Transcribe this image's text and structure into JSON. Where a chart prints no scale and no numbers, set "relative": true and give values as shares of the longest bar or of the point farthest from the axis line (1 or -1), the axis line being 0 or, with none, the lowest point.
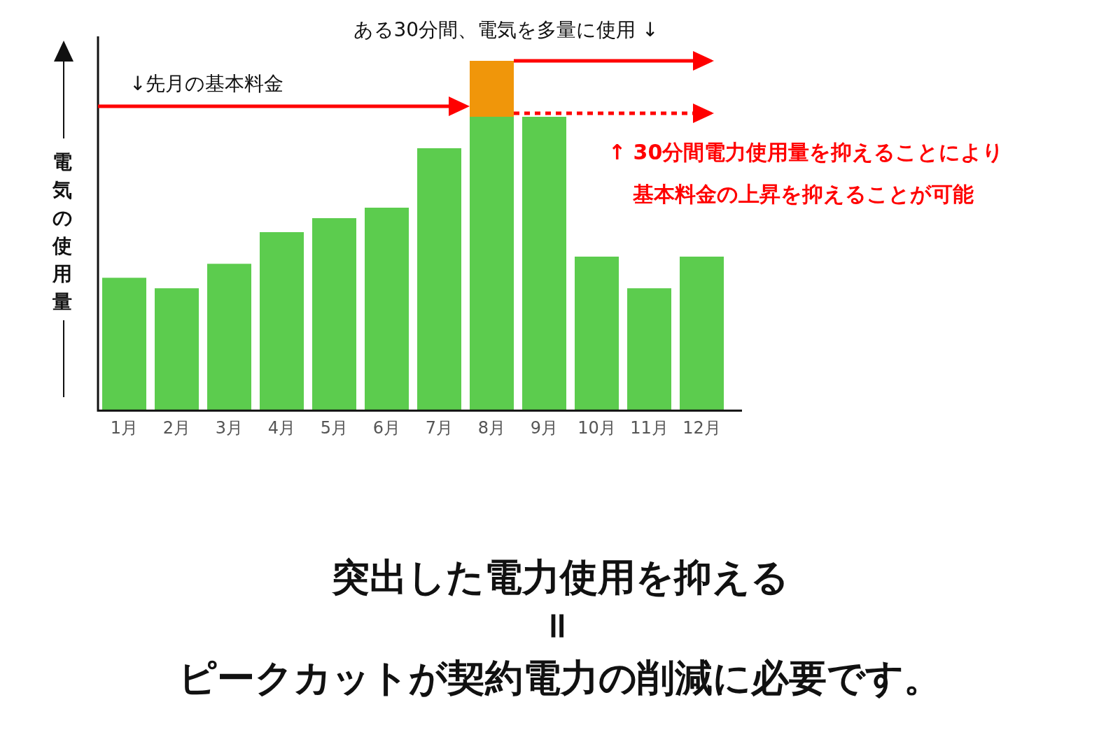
{
  "chart_data": {
    "type": "bar",
    "relative": true,
    "stacked": true,
    "ylabel": "電気の使用量",
    "categories": [
      "1月",
      "2月",
      "3月",
      "4月",
      "5月",
      "6月",
      "7月",
      "8月",
      "9月",
      "10月",
      "11月",
      "12月"
    ],
    "series": [
      {
        "color": "#5ccc4e",
        "values": [
          0.38,
          0.35,
          0.42,
          0.51,
          0.55,
          0.58,
          0.75,
          0.84,
          0.84,
          0.44,
          0.35,
          0.44
        ]
      },
      {
        "color": "#f0960a",
        "values": [
          null,
          null,
          null,
          null,
          null,
          null,
          null,
          0.16,
          null,
          null,
          null,
          null
        ]
      }
    ],
    "ref_lines": [
      {
        "axis": "y",
        "value": 0.87,
        "label": "↓先月の基本料金",
        "color": "#ff0000",
        "line_style": "solid"
      },
      {
        "axis": "y",
        "value": 1,
        "label": "ある30分間、電気を多量に使用 ↓",
        "color": "#ff0000",
        "line_style": "solid"
      },
      {
        "axis": "y",
        "value": 0.85,
        "color": "#ff0000",
        "line_style": "dotted"
      }
    ],
    "grid": false,
    "legend": false,
    "annotations": [
      "↑ 30分間電力使用量を抑えることにより",
      "基本料金の上昇を抑えることが可能",
      "突出した電力使用を抑える",
      "＝",
      "ピークカットが契約電力の削減に必要です。"
    ]
  }
}
